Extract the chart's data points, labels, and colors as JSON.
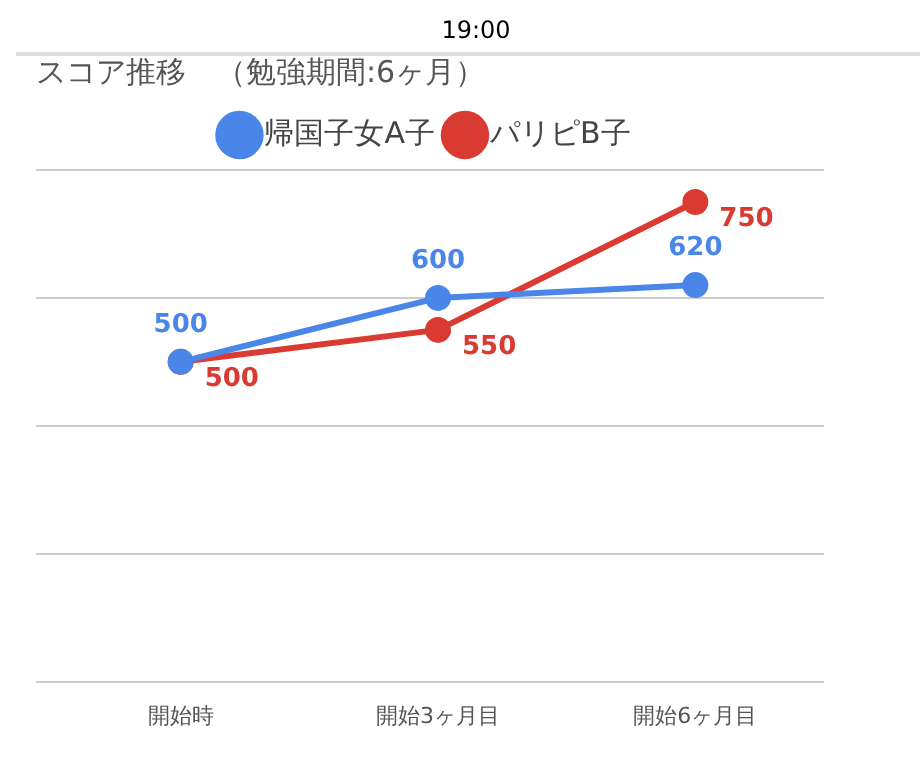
{
  "chart_data": {
    "type": "line",
    "title": "スコア推移　（勉強期間:6ヶ月）",
    "annotations": [
      "19:00"
    ],
    "categories": [
      "開始時",
      "開始3ヶ月目",
      "開始6ヶ月目"
    ],
    "series": [
      {
        "name": "帰国子女A子",
        "color": "#4a86e8",
        "values": [
          500,
          600,
          620
        ]
      },
      {
        "name": "パリピB子",
        "color": "#d93a31",
        "values": [
          500,
          550,
          750
        ]
      }
    ],
    "ylim": [
      0,
      800
    ],
    "yticks": [
      0,
      200,
      400,
      600,
      800
    ],
    "tick_labels": "x",
    "grid": "y",
    "legend": "top",
    "marker": "circle",
    "line_style": "solid",
    "data_labels": true
  }
}
